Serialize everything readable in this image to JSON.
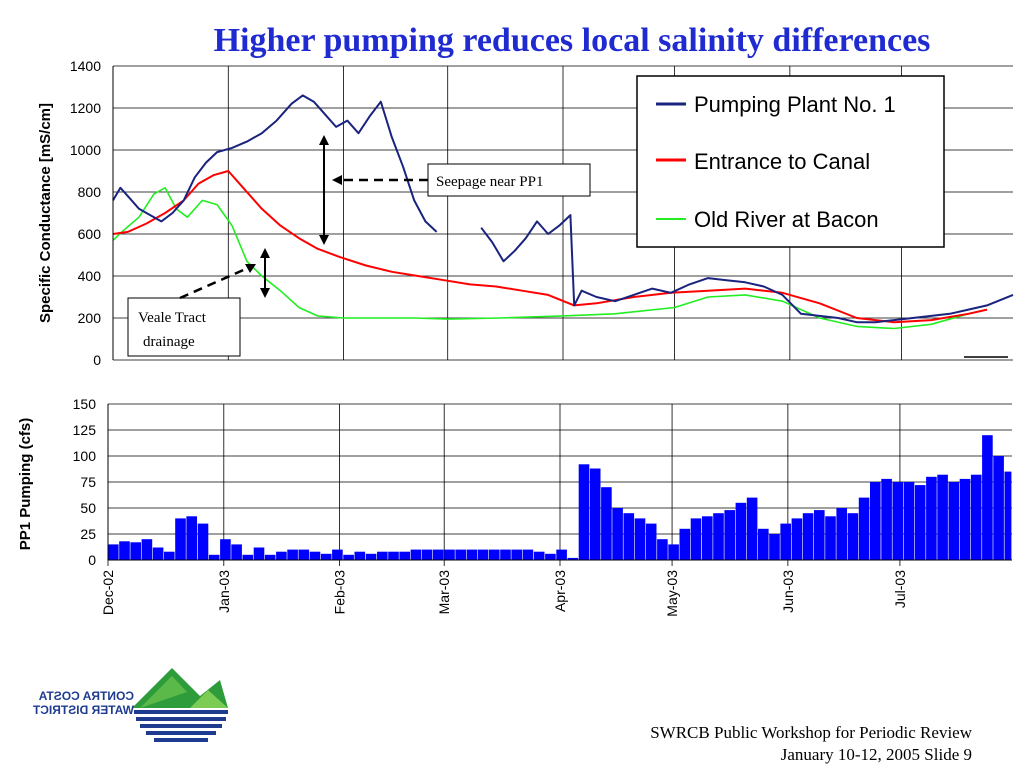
{
  "slide": {
    "title": "Higher pumping reduces local salinity differences",
    "footer_line1": "SWRCB Public Workshop for Periodic Review",
    "footer_line2": "January 10-12, 2005  Slide 9",
    "logo_text_line1": "CONTRA COSTA",
    "logo_text_line2": "WATER DISTRICT"
  },
  "chart_data": [
    {
      "type": "line",
      "ylabel": "Specific Conductance  [mS/cm]",
      "ylim": [
        0,
        1400
      ],
      "yticks": [
        "0",
        "200",
        "400",
        "600",
        "800",
        "1000",
        "1200",
        "1400"
      ],
      "grid": true,
      "legend_position": "top-right",
      "x_range": [
        "2002-12-01",
        "2003-07-31"
      ],
      "colors": {
        "Pumping Plant No. 1": "#1a237e",
        "Entrance to Canal": "#ff0000",
        "Old River at Bacon": "#22ee22"
      },
      "series": [
        {
          "name": "Pumping Plant No. 1",
          "x": [
            "2002-12-01",
            "2002-12-03",
            "2002-12-05",
            "2002-12-08",
            "2002-12-11",
            "2002-12-14",
            "2002-12-17",
            "2002-12-20",
            "2002-12-23",
            "2002-12-26",
            "2002-12-29",
            "2003-01-02",
            "2003-01-06",
            "2003-01-10",
            "2003-01-14",
            "2003-01-18",
            "2003-01-21",
            "2003-01-24",
            "2003-01-27",
            "2003-01-30",
            "2003-02-02",
            "2003-02-05",
            "2003-02-08",
            "2003-02-11",
            "2003-02-14",
            "2003-02-17",
            "2003-02-20",
            "2003-02-23",
            "2003-02-26",
            "null",
            "2003-03-10",
            "2003-03-13",
            "2003-03-16",
            "2003-03-19",
            "2003-03-22",
            "2003-03-25",
            "2003-03-28",
            "2003-03-31",
            "2003-04-03",
            "2003-04-04",
            "2003-04-06",
            "2003-04-10",
            "2003-04-15",
            "2003-04-20",
            "2003-04-25",
            "2003-04-30",
            "2003-05-05",
            "2003-05-10",
            "2003-05-15",
            "2003-05-20",
            "2003-05-25",
            "2003-05-30",
            "2003-06-04",
            "2003-06-09",
            "2003-06-14",
            "2003-06-19",
            "2003-06-24",
            "2003-06-29",
            "2003-07-04",
            "2003-07-09",
            "2003-07-14",
            "2003-07-19",
            "2003-07-24",
            "2003-07-31"
          ],
          "values": [
            760,
            820,
            780,
            720,
            690,
            660,
            700,
            760,
            870,
            940,
            990,
            1010,
            1040,
            1080,
            1140,
            1220,
            1260,
            1230,
            1170,
            1110,
            1140,
            1080,
            1160,
            1230,
            1060,
            920,
            760,
            660,
            610,
            null,
            630,
            560,
            470,
            520,
            580,
            660,
            600,
            640,
            690,
            260,
            330,
            300,
            280,
            310,
            340,
            320,
            360,
            390,
            380,
            370,
            350,
            310,
            220,
            210,
            200,
            180,
            180,
            190,
            200,
            210,
            220,
            240,
            260,
            310
          ]
        },
        {
          "name": "Entrance to Canal",
          "x": [
            "2002-12-01",
            "2002-12-05",
            "2002-12-10",
            "2002-12-15",
            "2002-12-20",
            "2002-12-24",
            "2002-12-28",
            "2003-01-01",
            "2003-01-05",
            "2003-01-10",
            "2003-01-15",
            "2003-01-20",
            "2003-01-25",
            "2003-01-31",
            "2003-02-07",
            "2003-02-14",
            "2003-02-21",
            "2003-02-28",
            "2003-03-07",
            "2003-03-14",
            "2003-03-21",
            "2003-03-28",
            "2003-04-04",
            "2003-04-10",
            "2003-04-20",
            "2003-04-30",
            "2003-05-10",
            "2003-05-20",
            "2003-05-30",
            "2003-06-09",
            "2003-06-19",
            "2003-06-29",
            "2003-07-09",
            "2003-07-19",
            "2003-07-24"
          ],
          "values": [
            600,
            610,
            650,
            700,
            760,
            840,
            880,
            900,
            820,
            720,
            640,
            580,
            530,
            490,
            450,
            420,
            400,
            380,
            360,
            350,
            330,
            310,
            260,
            270,
            300,
            320,
            330,
            340,
            320,
            270,
            200,
            180,
            190,
            220,
            240
          ]
        },
        {
          "name": "Old River at Bacon",
          "x": [
            "2002-12-01",
            "2002-12-04",
            "2002-12-08",
            "2002-12-12",
            "2002-12-15",
            "2002-12-18",
            "2002-12-21",
            "2002-12-25",
            "2002-12-29",
            "2003-01-02",
            "2003-01-06",
            "2003-01-10",
            "2003-01-15",
            "2003-01-20",
            "2003-01-25",
            "2003-02-01",
            "2003-02-10",
            "2003-02-20",
            "2003-03-01",
            "2003-03-15",
            "2003-04-01",
            "2003-04-15",
            "2003-05-01",
            "2003-05-10",
            "2003-05-20",
            "2003-05-30",
            "2003-06-09",
            "2003-06-19",
            "2003-06-29",
            "2003-07-09",
            "2003-07-19",
            "2003-07-24"
          ],
          "values": [
            570,
            620,
            680,
            790,
            820,
            720,
            680,
            760,
            740,
            640,
            470,
            400,
            330,
            250,
            210,
            200,
            200,
            200,
            195,
            200,
            210,
            220,
            250,
            300,
            310,
            280,
            200,
            160,
            150,
            170,
            220,
            240
          ]
        }
      ]
    },
    {
      "type": "bar",
      "ylabel": "PP1 Pumping (cfs)",
      "ylim": [
        0,
        150
      ],
      "yticks": [
        "0",
        "25",
        "50",
        "75",
        "100",
        "125",
        "150"
      ],
      "grid": true,
      "color": "#0000ff",
      "x_tick_labels": [
        "Dec-02",
        "Jan-03",
        "Feb-03",
        "Mar-03",
        "Apr-03",
        "May-03",
        "Jun-03",
        "Jul-03"
      ],
      "x_range": [
        "2002-12-01",
        "2003-07-31"
      ],
      "x": [
        "2002-12-01",
        "2002-12-04",
        "2002-12-07",
        "2002-12-10",
        "2002-12-13",
        "2002-12-16",
        "2002-12-19",
        "2002-12-22",
        "2002-12-25",
        "2002-12-28",
        "2002-12-31",
        "2003-01-03",
        "2003-01-06",
        "2003-01-09",
        "2003-01-12",
        "2003-01-15",
        "2003-01-18",
        "2003-01-21",
        "2003-01-24",
        "2003-01-27",
        "2003-01-30",
        "2003-02-02",
        "2003-02-05",
        "2003-02-08",
        "2003-02-11",
        "2003-02-14",
        "2003-02-17",
        "2003-02-20",
        "2003-02-23",
        "2003-02-26",
        "2003-03-01",
        "2003-03-04",
        "2003-03-07",
        "2003-03-10",
        "2003-03-13",
        "2003-03-16",
        "2003-03-19",
        "2003-03-22",
        "2003-03-25",
        "2003-03-28",
        "2003-03-31",
        "2003-04-03",
        "2003-04-06",
        "2003-04-09",
        "2003-04-12",
        "2003-04-15",
        "2003-04-18",
        "2003-04-21",
        "2003-04-24",
        "2003-04-27",
        "2003-04-30",
        "2003-05-03",
        "2003-05-06",
        "2003-05-09",
        "2003-05-12",
        "2003-05-15",
        "2003-05-18",
        "2003-05-21",
        "2003-05-24",
        "2003-05-27",
        "2003-05-30",
        "2003-06-02",
        "2003-06-05",
        "2003-06-08",
        "2003-06-11",
        "2003-06-14",
        "2003-06-17",
        "2003-06-20",
        "2003-06-23",
        "2003-06-26",
        "2003-06-29",
        "2003-07-02",
        "2003-07-05",
        "2003-07-08",
        "2003-07-11",
        "2003-07-14",
        "2003-07-17",
        "2003-07-20",
        "2003-07-23",
        "2003-07-26",
        "2003-07-29"
      ],
      "values": [
        15,
        18,
        17,
        20,
        12,
        8,
        40,
        42,
        35,
        5,
        20,
        15,
        5,
        12,
        5,
        8,
        10,
        10,
        8,
        6,
        10,
        5,
        8,
        6,
        8,
        8,
        8,
        10,
        10,
        10,
        10,
        10,
        10,
        10,
        10,
        10,
        10,
        10,
        8,
        6,
        10,
        2,
        92,
        88,
        70,
        50,
        45,
        40,
        35,
        20,
        15,
        30,
        40,
        42,
        45,
        48,
        55,
        60,
        30,
        25,
        35,
        40,
        45,
        48,
        42,
        50,
        45,
        60,
        75,
        78,
        75,
        75,
        72,
        80,
        82,
        75,
        78,
        82,
        120,
        100,
        85
      ]
    }
  ],
  "annotations": {
    "seepage": "Seepage near PP1",
    "veale_line1": "Veale Tract",
    "veale_line2": "drainage"
  }
}
